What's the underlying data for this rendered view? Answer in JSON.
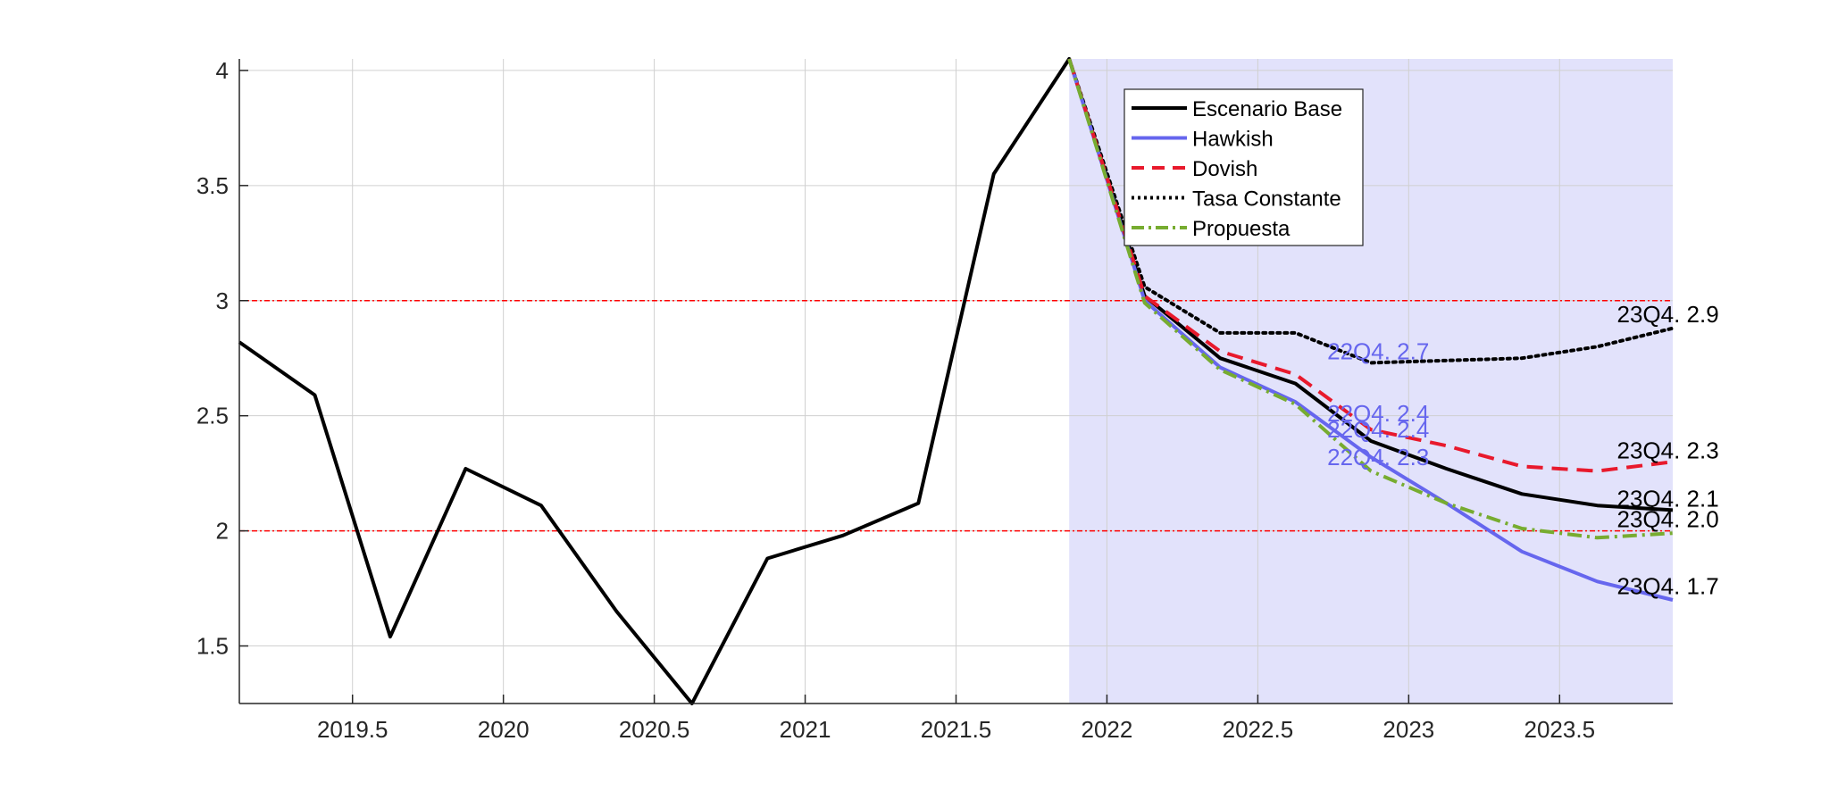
{
  "chart_data": {
    "type": "line",
    "title": "",
    "xlabel": "",
    "ylabel": "",
    "xlim": [
      2019.125,
      2023.875
    ],
    "ylim": [
      1.25,
      4.05
    ],
    "grid": true,
    "legend_placement": "top-center",
    "x_ticks": [
      2019.5,
      2020,
      2020.5,
      2021,
      2021.5,
      2022,
      2022.5,
      2023,
      2023.5
    ],
    "x_tick_labels": [
      "2019.5",
      "2020",
      "2020.5",
      "2021",
      "2021.5",
      "2022",
      "2022.5",
      "2023",
      "2023.5"
    ],
    "y_ticks": [
      1.5,
      2,
      2.5,
      3,
      3.5,
      4
    ],
    "y_tick_labels": [
      "1.5",
      "2",
      "2.5",
      "3",
      "3.5",
      "4"
    ],
    "forecast_region": {
      "x_start": 2021.875,
      "x_end": 2023.875,
      "color": "#e2e2fb"
    },
    "target_band": {
      "values": [
        2,
        3
      ],
      "color": "#ff0000"
    },
    "series": [
      {
        "name": "Escenario Base",
        "color": "#000000",
        "dash": "solid",
        "x": [
          2019.125,
          2019.375,
          2019.625,
          2019.875,
          2020.125,
          2020.375,
          2020.625,
          2020.875,
          2021.125,
          2021.375,
          2021.625,
          2021.875,
          2022.125,
          2022.375,
          2022.625,
          2022.875,
          2023.125,
          2023.375,
          2023.625,
          2023.875
        ],
        "values": [
          2.82,
          2.59,
          1.54,
          2.27,
          2.11,
          1.65,
          1.25,
          1.88,
          1.98,
          2.12,
          3.55,
          4.05,
          3.02,
          2.75,
          2.64,
          2.39,
          2.27,
          2.16,
          2.11,
          2.09
        ]
      },
      {
        "name": "Hawkish",
        "color": "#6666ee",
        "dash": "solid",
        "x": [
          2021.875,
          2022.125,
          2022.375,
          2022.625,
          2022.875,
          2023.125,
          2023.375,
          2023.625,
          2023.875
        ],
        "values": [
          4.05,
          3.0,
          2.71,
          2.56,
          2.32,
          2.12,
          1.91,
          1.78,
          1.7
        ]
      },
      {
        "name": "Dovish",
        "color": "#e8192c",
        "dash": "dashed",
        "x": [
          2021.875,
          2022.125,
          2022.375,
          2022.625,
          2022.875,
          2023.125,
          2023.375,
          2023.625,
          2023.875
        ],
        "values": [
          4.05,
          3.02,
          2.78,
          2.68,
          2.44,
          2.37,
          2.28,
          2.26,
          2.3
        ]
      },
      {
        "name": "Tasa Constante",
        "color": "#000000",
        "dash": "dotted",
        "x": [
          2021.875,
          2022.125,
          2022.375,
          2022.625,
          2022.875,
          2023.125,
          2023.375,
          2023.625,
          2023.875
        ],
        "values": [
          4.05,
          3.06,
          2.86,
          2.86,
          2.73,
          2.74,
          2.75,
          2.8,
          2.88
        ]
      },
      {
        "name": "Propuesta",
        "color": "#77ac30",
        "dash": "dashdot",
        "x": [
          2021.875,
          2022.125,
          2022.375,
          2022.625,
          2022.875,
          2023.125,
          2023.375,
          2023.625,
          2023.875
        ],
        "values": [
          4.05,
          2.99,
          2.7,
          2.55,
          2.26,
          2.12,
          2.01,
          1.97,
          1.99
        ]
      }
    ],
    "annotations": [
      {
        "text": "22Q4. 2.7",
        "x": 2022.73,
        "y": 2.78,
        "color": "#6666ee"
      },
      {
        "text": "22Q4. 2.4",
        "x": 2022.73,
        "y": 2.51,
        "color": "#6666ee"
      },
      {
        "text": "22Q4. 2.4",
        "x": 2022.73,
        "y": 2.44,
        "color": "#6666ee"
      },
      {
        "text": "22Q4. 2.3",
        "x": 2022.73,
        "y": 2.32,
        "color": "#6666ee"
      },
      {
        "text": "23Q4. 2.9",
        "x": 2023.69,
        "y": 2.94,
        "color": "#000000"
      },
      {
        "text": "23Q4. 2.3",
        "x": 2023.69,
        "y": 2.35,
        "color": "#000000"
      },
      {
        "text": "23Q4. 2.1",
        "x": 2023.69,
        "y": 2.14,
        "color": "#000000"
      },
      {
        "text": "23Q4. 2.0",
        "x": 2023.69,
        "y": 2.05,
        "color": "#000000"
      },
      {
        "text": "23Q4. 1.7",
        "x": 2023.69,
        "y": 1.76,
        "color": "#000000"
      }
    ]
  }
}
